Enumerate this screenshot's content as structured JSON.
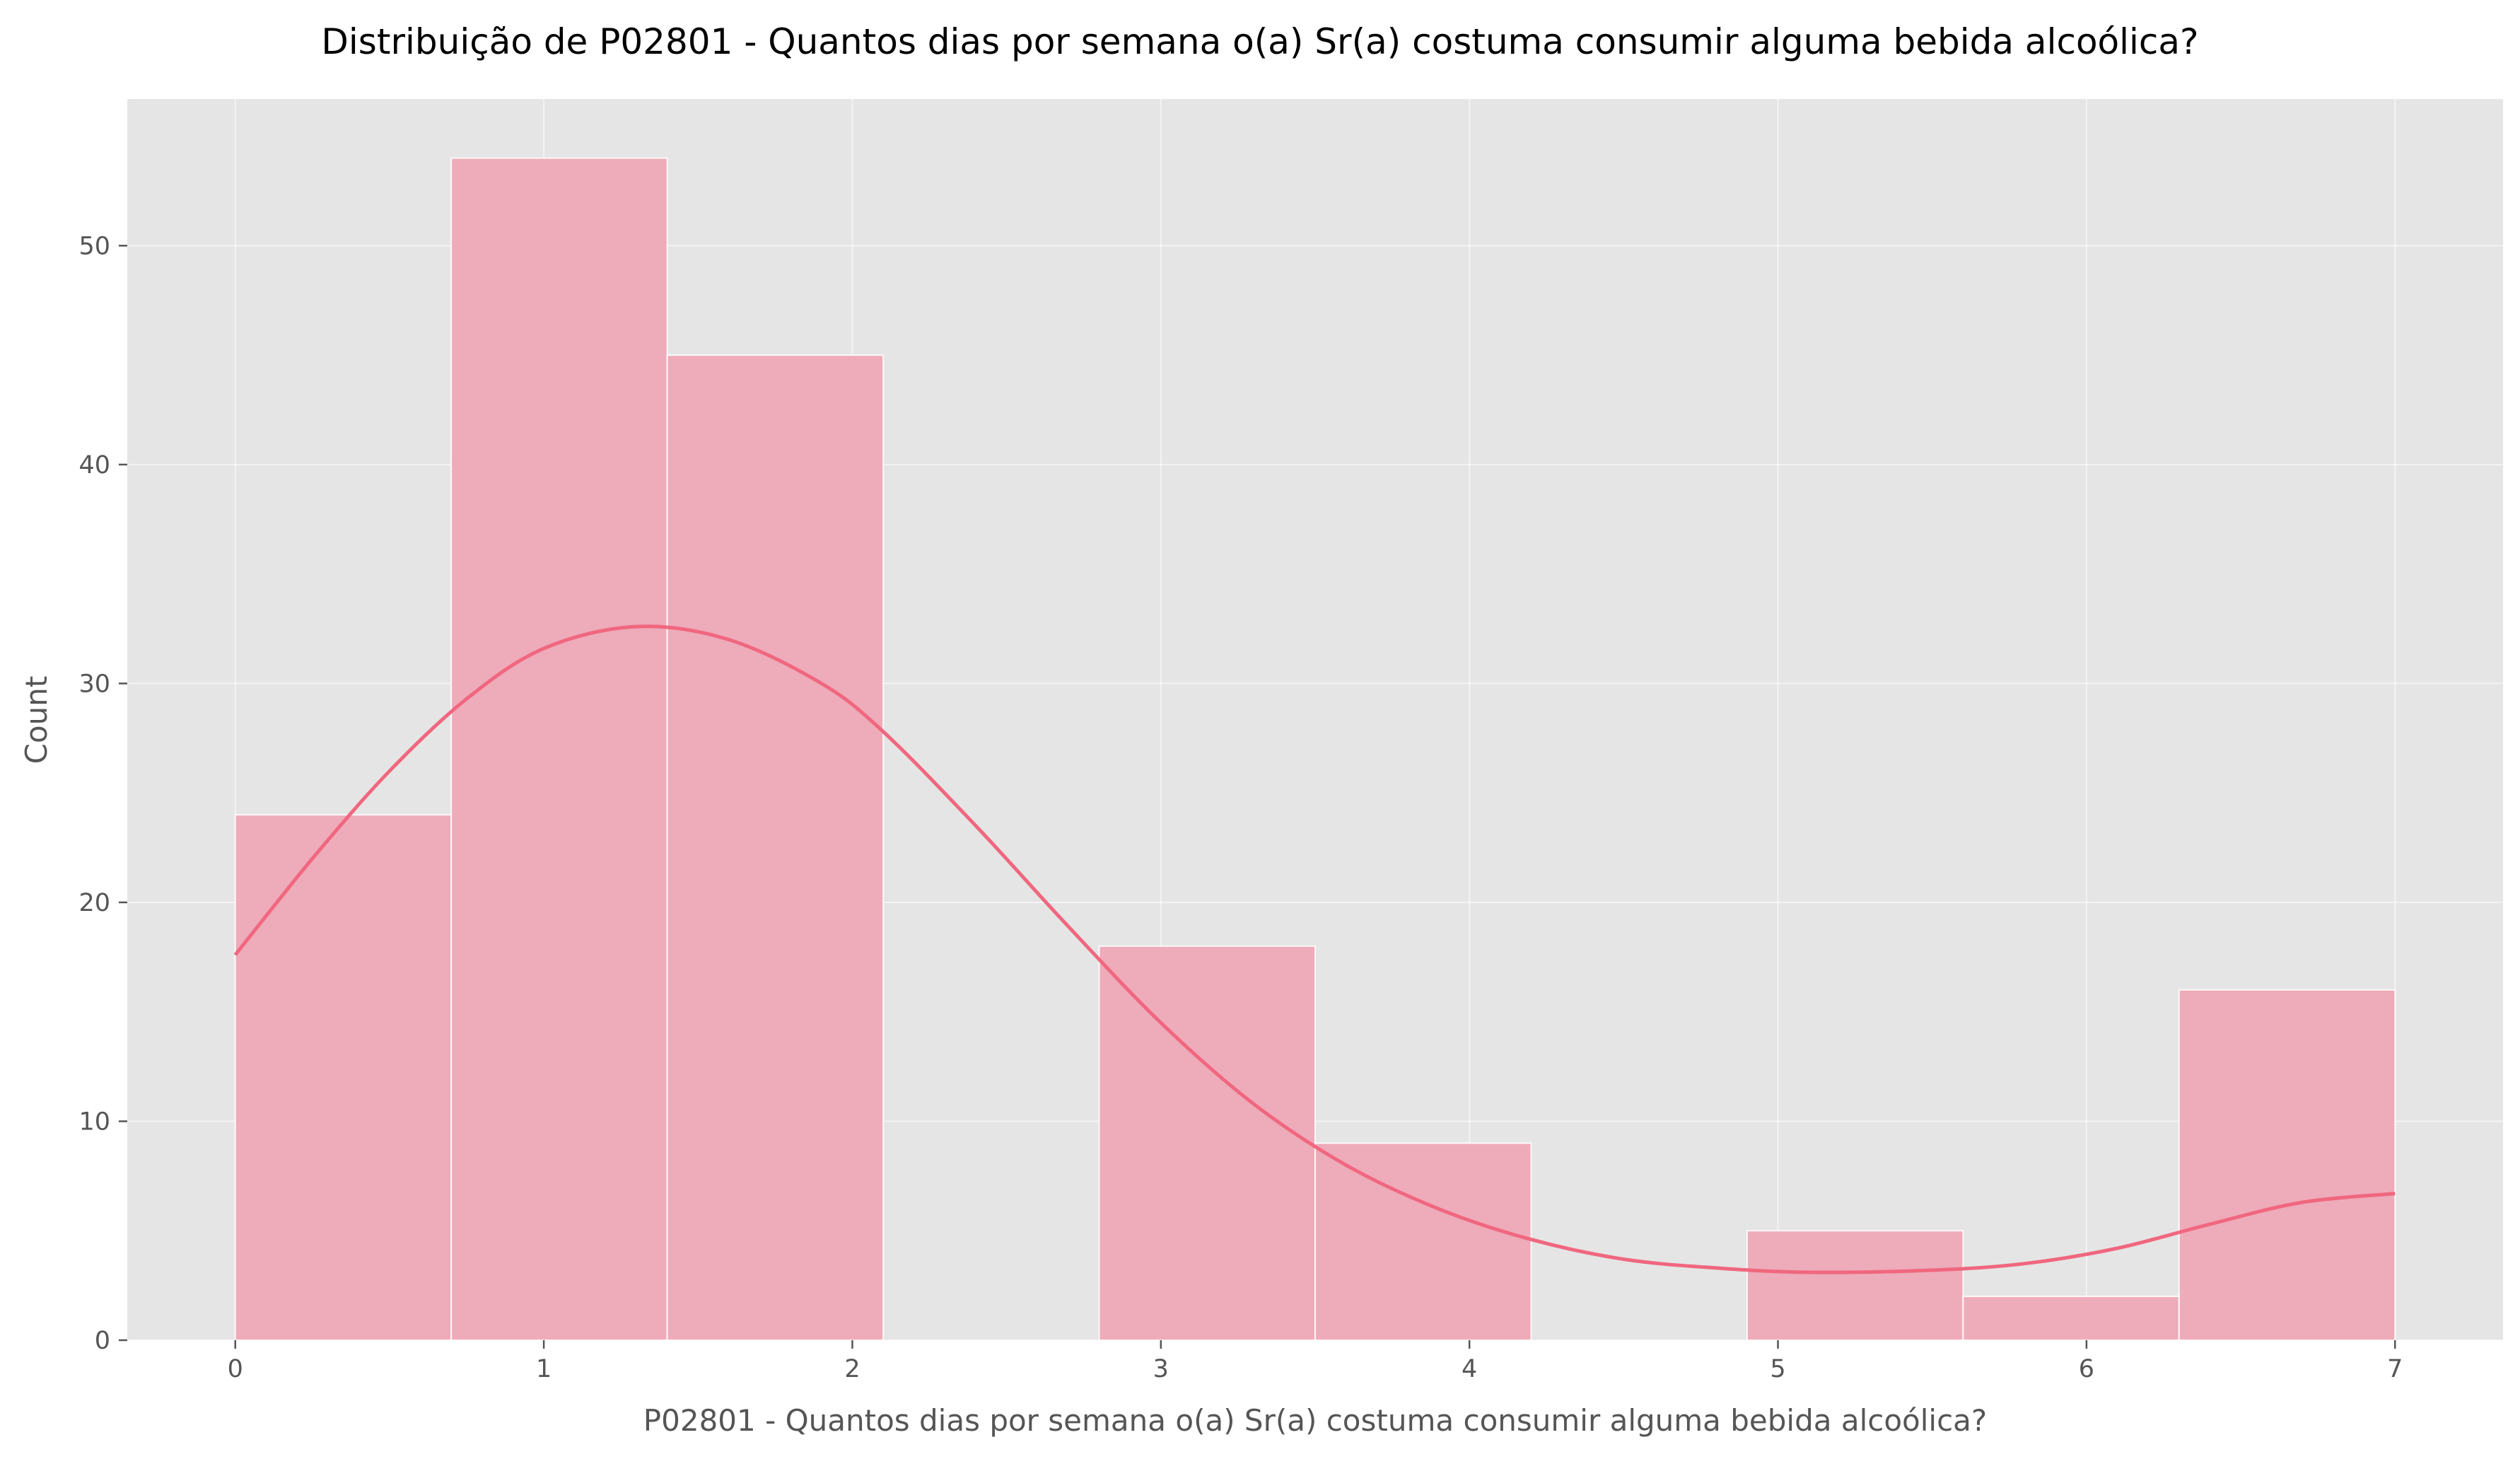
{
  "chart_data": {
    "type": "bar",
    "subtype": "histogram",
    "title": "Distribuição de P02801 - Quantos dias por semana o(a) Sr(a) costuma consumir alguma bebida alcoólica?",
    "xlabel": "P02801 - Quantos dias por semana o(a) Sr(a) costuma consumir alguma bebida alcoólica?",
    "ylabel": "Count",
    "xlim": [
      -0.35,
      7.35
    ],
    "ylim": [
      0,
      56.7
    ],
    "xticks": [
      0,
      1,
      2,
      3,
      4,
      5,
      6,
      7
    ],
    "yticks": [
      0,
      10,
      20,
      30,
      40,
      50
    ],
    "bins": [
      {
        "x0": 0.0,
        "x1": 0.7,
        "count": 24
      },
      {
        "x0": 0.7,
        "x1": 1.4,
        "count": 54
      },
      {
        "x0": 1.4,
        "x1": 2.1,
        "count": 45
      },
      {
        "x0": 2.1,
        "x1": 2.8,
        "count": 0
      },
      {
        "x0": 2.8,
        "x1": 3.5,
        "count": 18
      },
      {
        "x0": 3.5,
        "x1": 4.2,
        "count": 9
      },
      {
        "x0": 4.2,
        "x1": 4.9,
        "count": 0
      },
      {
        "x0": 4.9,
        "x1": 5.6,
        "count": 5
      },
      {
        "x0": 5.6,
        "x1": 6.3,
        "count": 2
      },
      {
        "x0": 6.3,
        "x1": 7.0,
        "count": 16
      }
    ],
    "kde": {
      "x": [
        0.0,
        0.25,
        0.5,
        0.75,
        1.0,
        1.3,
        1.6,
        1.9,
        2.1,
        2.4,
        2.7,
        3.0,
        3.3,
        3.6,
        3.9,
        4.2,
        4.5,
        4.8,
        5.1,
        5.5,
        5.8,
        6.1,
        6.4,
        6.7,
        7.0
      ],
      "y": [
        17.6,
        22.0,
        26.0,
        29.3,
        31.6,
        32.6,
        32.0,
        30.0,
        27.8,
        23.5,
        18.9,
        14.5,
        10.8,
        8.0,
        6.0,
        4.6,
        3.7,
        3.3,
        3.1,
        3.2,
        3.5,
        4.2,
        5.3,
        6.3,
        6.7
      ]
    },
    "bar_color": "#eeabb9",
    "line_color": "#f0677f",
    "background_color": "#e5e5e5",
    "grid": true
  }
}
